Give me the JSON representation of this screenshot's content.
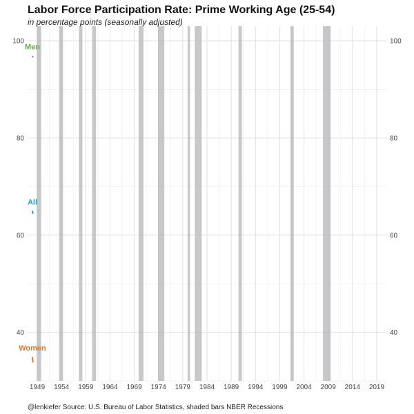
{
  "chart_data": {
    "type": "line",
    "title": "Labor Force Participation Rate: Prime Working Age (25-54)",
    "subtitle": "in percentage points (seasonally adjusted)",
    "caption": "@lenkiefer Source: U.S. Bureau of Labor Statistics, shaded bars NBER Recessions",
    "xlabel": "",
    "ylabel": "",
    "xlim": [
      1947,
      2021
    ],
    "ylim": [
      30,
      103
    ],
    "x_ticks": [
      1949,
      1954,
      1959,
      1964,
      1969,
      1974,
      1979,
      1984,
      1989,
      1994,
      1999,
      2004,
      2009,
      2014,
      2019
    ],
    "y_ticks": [
      40,
      60,
      80,
      100
    ],
    "grid": true,
    "recessions": [
      {
        "start": 1948.9,
        "end": 1949.8
      },
      {
        "start": 1953.5,
        "end": 1954.3
      },
      {
        "start": 1957.6,
        "end": 1958.3
      },
      {
        "start": 1960.3,
        "end": 1961.1
      },
      {
        "start": 1969.9,
        "end": 1970.9
      },
      {
        "start": 1973.9,
        "end": 1975.2
      },
      {
        "start": 1980.0,
        "end": 1980.5
      },
      {
        "start": 1981.5,
        "end": 1982.9
      },
      {
        "start": 1990.5,
        "end": 1991.2
      },
      {
        "start": 2001.2,
        "end": 2001.9
      },
      {
        "start": 2007.9,
        "end": 2009.5
      }
    ],
    "series": [
      {
        "name": "Men",
        "color": "#6aa84f",
        "x": [
          1948.0,
          1948.1
        ],
        "values": [
          96.8,
          96.7
        ]
      },
      {
        "name": "All",
        "color": "#1a9fd4",
        "x": [
          1948.0,
          1948.1
        ],
        "values": [
          64.9,
          64.5
        ]
      },
      {
        "name": "Women",
        "color": "#d9782e",
        "x": [
          1948.0,
          1948.1
        ],
        "values": [
          34.8,
          33.9
        ]
      }
    ]
  }
}
